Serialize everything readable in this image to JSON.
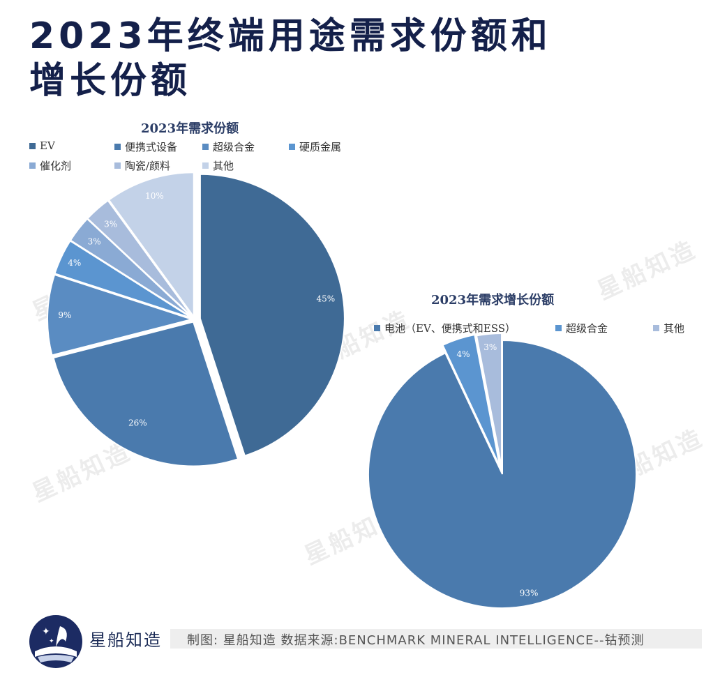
{
  "title": "2023年终端用途需求份额和增长份额",
  "chart_data": [
    {
      "type": "pie",
      "title": "2023年需求份额",
      "categories": [
        "EV",
        "便携式设备",
        "超级合金",
        "硬质金属",
        "催化剂",
        "陶瓷/颜料",
        "其他"
      ],
      "values": [
        45,
        26,
        9,
        4,
        3,
        3,
        10
      ],
      "labels": [
        "45%",
        "26%",
        "9%",
        "4%",
        "3%",
        "3%",
        "10%"
      ],
      "colors": [
        "#3f6a95",
        "#4a7aad",
        "#5a8cc2",
        "#5b95d0",
        "#8aaad4",
        "#a8bcdc",
        "#c3d2e8"
      ],
      "legend_position": "top"
    },
    {
      "type": "pie",
      "title": "2023年需求增长份额",
      "categories": [
        "电池（EV、便携式和ESS）",
        "超级合金",
        "其他"
      ],
      "values": [
        93,
        4,
        3
      ],
      "labels": [
        "93%",
        "4%",
        "3%"
      ],
      "colors": [
        "#4a7aad",
        "#5b95d0",
        "#a8bcdc"
      ],
      "legend_position": "top"
    }
  ],
  "watermark": "星船知造",
  "footer": {
    "brand": "星船知造",
    "source": "制图: 星船知造 数据来源:BENCHMARK MINERAL INTELLIGENCE--钴预测"
  }
}
